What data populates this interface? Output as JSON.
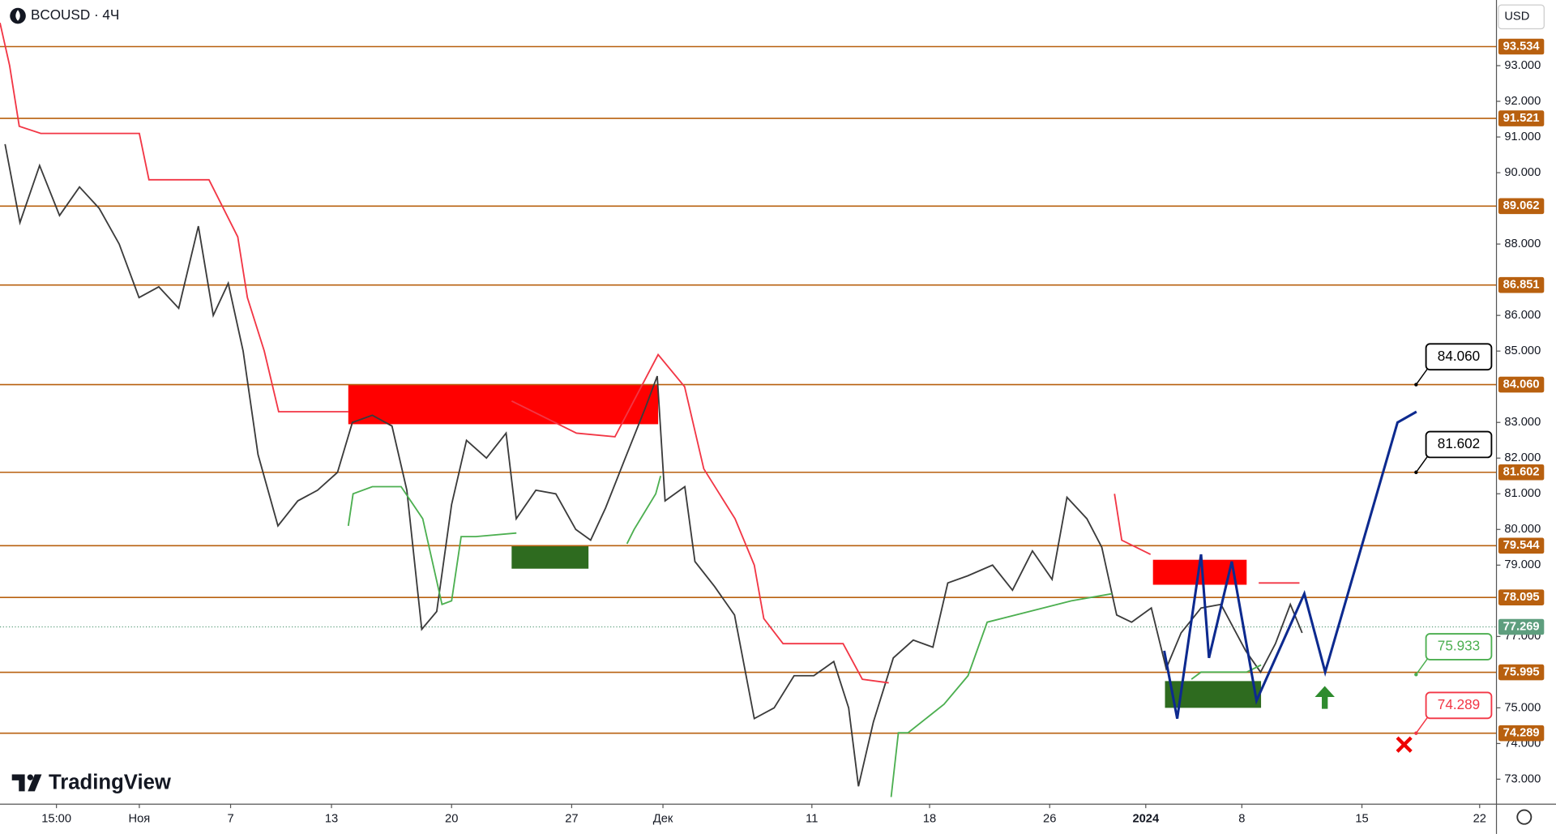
{
  "chart_data": {
    "type": "line",
    "title": "BCOUSD · 4Ч",
    "currency": "USD",
    "brand": "TradingView",
    "xlim": [
      0,
      62.3
    ],
    "ylim": [
      72.3,
      94.84
    ],
    "xticks": [
      {
        "value": 2.35,
        "label": "15:00"
      },
      {
        "value": 5.8,
        "label": "Ноя"
      },
      {
        "value": 9.6,
        "label": "7"
      },
      {
        "value": 13.8,
        "label": "13"
      },
      {
        "value": 18.8,
        "label": "20"
      },
      {
        "value": 23.8,
        "label": "27"
      },
      {
        "value": 27.6,
        "label": "Дек"
      },
      {
        "value": 33.8,
        "label": "11"
      },
      {
        "value": 38.7,
        "label": "18"
      },
      {
        "value": 43.7,
        "label": "26"
      },
      {
        "value": 47.7,
        "label": "2024"
      },
      {
        "value": 51.7,
        "label": "8"
      },
      {
        "value": 56.7,
        "label": "15"
      },
      {
        "value": 61.6,
        "label": "22"
      }
    ],
    "yticks": [
      {
        "value": 93,
        "label": "93.000"
      },
      {
        "value": 92,
        "label": "92.000"
      },
      {
        "value": 91,
        "label": "91.000"
      },
      {
        "value": 90,
        "label": "90.000"
      },
      {
        "value": 88,
        "label": "88.000"
      },
      {
        "value": 86,
        "label": "86.000"
      },
      {
        "value": 85,
        "label": "85.000"
      },
      {
        "value": 83,
        "label": "83.000"
      },
      {
        "value": 82,
        "label": "82.000"
      },
      {
        "value": 81,
        "label": "81.000"
      },
      {
        "value": 80,
        "label": "80.000"
      },
      {
        "value": 79,
        "label": "79.000"
      },
      {
        "value": 77,
        "label": "77.000"
      },
      {
        "value": 75,
        "label": "75.000"
      },
      {
        "value": 74,
        "label": "74.000"
      },
      {
        "value": 73,
        "label": "73.000"
      }
    ],
    "levels": [
      93.534,
      91.521,
      89.062,
      86.851,
      {
        "value": 84.06,
        "label": "84.060"
      },
      81.602,
      79.544,
      78.095,
      75.995,
      74.289
    ],
    "level_color": "#b8600f",
    "last_price": 77.269,
    "last_price_color": "#5e9e7e",
    "series": [
      {
        "color": "#3b3b3b",
        "x": [
          0.21,
          0.83,
          1.65,
          2.48,
          3.31,
          4.13,
          4.96,
          5.79,
          6.61,
          7.44,
          8.26,
          8.88,
          9.5,
          10.12,
          10.74,
          11.57,
          12.4,
          13.22,
          14.05,
          14.67,
          15.5,
          16.32,
          16.94,
          17.56,
          18.18,
          18.8,
          19.42,
          20.25,
          21.07,
          21.49,
          22.31,
          23.14,
          23.97,
          24.59,
          25.21,
          26.03,
          26.86,
          27.36,
          27.69,
          28.51,
          28.93,
          29.75,
          30.58,
          31.4,
          32.23,
          33.06,
          33.88,
          34.71,
          35.33,
          35.74,
          36.36,
          37.19,
          38.02,
          38.84,
          39.46,
          40.29,
          41.32,
          42.15,
          42.98,
          43.8,
          44.42,
          45.25,
          45.87,
          46.49,
          47.11,
          47.93,
          48.55,
          49.17,
          50.0,
          50.83,
          51.86,
          52.48,
          53.1,
          53.72,
          54.21
        ],
        "values": [
          90.8,
          88.6,
          90.2,
          88.8,
          89.6,
          89.0,
          88.0,
          86.5,
          86.8,
          86.2,
          88.5,
          86.0,
          86.9,
          85.0,
          82.1,
          80.1,
          80.8,
          81.1,
          81.6,
          83.0,
          83.2,
          82.9,
          81.1,
          77.2,
          77.7,
          80.7,
          82.5,
          82.0,
          82.7,
          80.3,
          81.1,
          81.0,
          80.0,
          79.7,
          80.6,
          82.0,
          83.4,
          84.3,
          80.8,
          81.2,
          79.1,
          78.4,
          77.6,
          74.7,
          75.0,
          75.9,
          75.9,
          76.3,
          75.0,
          72.8,
          74.6,
          76.4,
          76.9,
          76.7,
          78.5,
          78.7,
          79.0,
          78.3,
          79.4,
          78.6,
          80.9,
          80.3,
          79.5,
          77.6,
          77.4,
          77.8,
          76.1,
          77.1,
          77.8,
          77.9,
          76.6,
          76.0,
          76.8,
          77.9,
          77.1
        ]
      },
      {
        "color": "#f23645",
        "x": [
          0,
          0.4,
          0.8,
          1.7,
          5.8,
          6.2,
          8.7,
          9.9,
          10.3,
          11.0,
          11.6,
          14.5,
          14.6,
          21.3,
          24.0,
          25.6,
          27.4,
          28.5,
          29.3,
          30.6,
          31.4,
          31.8,
          32.6,
          35.1,
          35.9,
          37.0,
          37.1,
          46.4,
          46.7,
          47.9,
          48.0,
          52.4,
          54.1
        ],
        "values": [
          94.2,
          93.0,
          91.3,
          91.1,
          91.1,
          89.8,
          89.8,
          88.2,
          86.5,
          85.0,
          83.3,
          83.3,
          null,
          83.6,
          82.7,
          82.6,
          84.9,
          84.0,
          81.7,
          80.3,
          79.0,
          77.5,
          76.8,
          76.8,
          75.8,
          75.7,
          null,
          81.0,
          79.7,
          79.3,
          null,
          78.5,
          78.5
        ]
      },
      {
        "color": "#4caf50",
        "x": [
          14.5,
          14.7,
          15.5,
          16.7,
          17.6,
          18.4,
          18.8,
          19.2,
          19.8,
          21.5,
          21.6,
          26.1,
          26.4,
          27.3,
          27.5,
          27.6,
          37.1,
          37.4,
          37.8,
          39.3,
          40.3,
          41.1,
          44.6,
          46.3,
          46.4,
          49.6,
          50.0,
          51.9,
          52.5
        ],
        "values": [
          80.1,
          81.0,
          81.2,
          81.2,
          80.3,
          77.9,
          78.0,
          79.8,
          79.8,
          79.9,
          null,
          79.6,
          80.0,
          81.0,
          81.5,
          null,
          72.5,
          74.3,
          74.3,
          75.1,
          75.9,
          77.4,
          78.0,
          78.2,
          null,
          75.8,
          76.0,
          76.0,
          76.2
        ]
      },
      {
        "color": "#0d2a8f",
        "x": [
          48.47,
          49.01,
          50.0,
          50.33,
          51.28,
          52.31,
          54.3,
          55.17,
          58.18,
          58.97
        ],
        "values": [
          76.6,
          74.7,
          79.3,
          76.4,
          79.1,
          75.2,
          78.2,
          76.0,
          83.0,
          83.3
        ]
      }
    ],
    "zones": [
      {
        "color": "#ff0000",
        "x": [
          14.5,
          27.4
        ],
        "values": [
          82.95,
          84.06
        ]
      },
      {
        "color": "#2e6b1f",
        "x": [
          21.3,
          24.5
        ],
        "values": [
          78.9,
          79.55
        ]
      },
      {
        "color": "#ff0000",
        "x": [
          48.0,
          51.9
        ],
        "values": [
          78.45,
          79.15
        ]
      },
      {
        "color": "#2e6b1f",
        "x": [
          48.5,
          52.5
        ],
        "values": [
          75.0,
          75.75
        ]
      }
    ],
    "callouts": [
      {
        "value": 84.06,
        "label": "84.060",
        "color": "#000000"
      },
      {
        "value": 81.602,
        "label": "81.602",
        "color": "#000000"
      },
      {
        "value": 75.933,
        "label": "75.933",
        "color": "#4caf50"
      },
      {
        "value": 74.289,
        "label": "74.289",
        "color": "#f23645"
      }
    ]
  }
}
